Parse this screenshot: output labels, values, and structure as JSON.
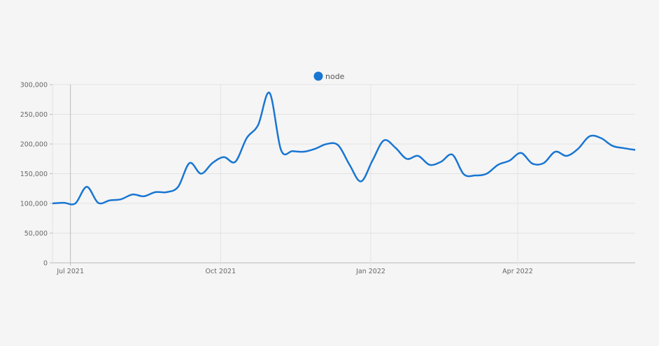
{
  "chart_data": {
    "type": "line",
    "title": "",
    "xlabel": "",
    "ylabel": "",
    "ylim": [
      0,
      300000
    ],
    "xlim": [
      "2021-06-20",
      "2022-06-12"
    ],
    "grid": true,
    "legend_placement": "top-center",
    "y_ticks": [
      "0",
      "50,000",
      "100,000",
      "150,000",
      "200,000",
      "250,000",
      "300,000"
    ],
    "y_tick_values": [
      0,
      50000,
      100000,
      150000,
      200000,
      250000,
      300000
    ],
    "x_ticks": [
      {
        "label": "Jul 2021",
        "date": "2021-07-01"
      },
      {
        "label": "Oct 2021",
        "date": "2021-10-01"
      },
      {
        "label": "Jan 2022",
        "date": "2022-01-01"
      },
      {
        "label": "Apr 2022",
        "date": "2022-04-01"
      }
    ],
    "series": [
      {
        "name": "node",
        "color": "#1976d2",
        "x": [
          "2021-06-20",
          "2021-06-27",
          "2021-07-04",
          "2021-07-11",
          "2021-07-18",
          "2021-07-25",
          "2021-08-01",
          "2021-08-08",
          "2021-08-15",
          "2021-08-22",
          "2021-08-29",
          "2021-09-05",
          "2021-09-12",
          "2021-09-19",
          "2021-09-26",
          "2021-10-03",
          "2021-10-10",
          "2021-10-17",
          "2021-10-24",
          "2021-10-31",
          "2021-11-07",
          "2021-11-14",
          "2021-11-21",
          "2021-11-28",
          "2021-12-05",
          "2021-12-12",
          "2021-12-19",
          "2021-12-26",
          "2022-01-02",
          "2022-01-09",
          "2022-01-16",
          "2022-01-23",
          "2022-01-30",
          "2022-02-06",
          "2022-02-13",
          "2022-02-20",
          "2022-02-27",
          "2022-03-06",
          "2022-03-13",
          "2022-03-20",
          "2022-03-27",
          "2022-04-03",
          "2022-04-10",
          "2022-04-17",
          "2022-04-24",
          "2022-05-01",
          "2022-05-08",
          "2022-05-15",
          "2022-05-22",
          "2022-05-29",
          "2022-06-05",
          "2022-06-12"
        ],
        "values": [
          100000,
          101000,
          100000,
          128000,
          101000,
          105000,
          107000,
          115000,
          112000,
          119000,
          119000,
          128000,
          168000,
          150000,
          168000,
          178000,
          170000,
          210000,
          232000,
          286000,
          190000,
          188000,
          187000,
          192000,
          200000,
          198000,
          165000,
          137000,
          172000,
          206000,
          194000,
          175000,
          180000,
          165000,
          170000,
          182000,
          149000,
          147000,
          150000,
          165000,
          172000,
          185000,
          167000,
          168000,
          187000,
          180000,
          192000,
          213000,
          210000,
          197000,
          193000,
          190000
        ]
      }
    ]
  }
}
